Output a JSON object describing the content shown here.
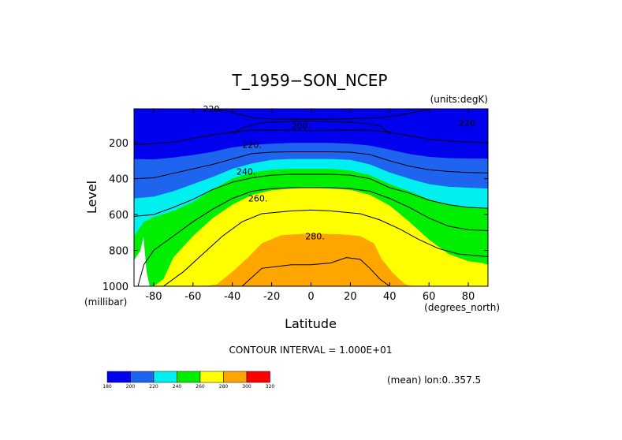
{
  "chart_data": {
    "type": "heatmap",
    "title": "T_1959−SON_NCEP",
    "units_label": "(units:degK)",
    "xlabel": "Latitude",
    "x_units_label": "(degrees_north)",
    "ylabel": "Level",
    "y_units_label": "(millibar)",
    "xlim": [
      -90,
      90
    ],
    "ylim": [
      1000,
      10
    ],
    "y_reversed": true,
    "x_ticks": [
      -80,
      -60,
      -40,
      -20,
      0,
      20,
      40,
      60,
      80
    ],
    "y_ticks": [
      200,
      400,
      600,
      800,
      1000
    ],
    "contour_interval_text": "CONTOUR INTERVAL = 1.000E+01",
    "mean_text": "(mean) lon:0..357.5",
    "contour_labels": [
      {
        "text": "220.",
        "lat": -50,
        "lev": 10,
        "value": 220
      },
      {
        "text": "200.",
        "lat": -5,
        "lev": 105,
        "value": 200
      },
      {
        "text": "220.",
        "lat": 80,
        "lev": 90,
        "value": 220
      },
      {
        "text": "220.",
        "lat": -30,
        "lev": 210,
        "value": 220
      },
      {
        "text": "240.",
        "lat": -33,
        "lev": 360,
        "value": 240
      },
      {
        "text": "260.",
        "lat": -27,
        "lev": 510,
        "value": 260
      },
      {
        "text": "280.",
        "lat": 2,
        "lev": 720,
        "value": 280
      }
    ],
    "colorbar": {
      "levels": [
        180,
        200,
        220,
        240,
        260,
        280,
        300,
        320
      ],
      "colors": [
        "#0000ee",
        "#1e64ee",
        "#00f0f0",
        "#00ee00",
        "#ffff00",
        "#ffa500",
        "#ff0000"
      ]
    },
    "bands": [
      {
        "lower": 200,
        "color": "#1e64ee",
        "boundary": [
          [
            -90,
            290
          ],
          [
            -80,
            292
          ],
          [
            -70,
            282
          ],
          [
            -60,
            268
          ],
          [
            -50,
            250
          ],
          [
            -40,
            225
          ],
          [
            -30,
            212
          ],
          [
            -20,
            205
          ],
          [
            -10,
            200
          ],
          [
            0,
            200
          ],
          [
            10,
            200
          ],
          [
            20,
            205
          ],
          [
            30,
            215
          ],
          [
            40,
            238
          ],
          [
            50,
            262
          ],
          [
            60,
            278
          ],
          [
            70,
            285
          ],
          [
            80,
            287
          ],
          [
            90,
            288
          ]
        ]
      },
      {
        "lower": 220,
        "color": "#00f0f0",
        "boundary": [
          [
            -90,
            510
          ],
          [
            -80,
            500
          ],
          [
            -70,
            470
          ],
          [
            -60,
            430
          ],
          [
            -50,
            390
          ],
          [
            -40,
            345
          ],
          [
            -30,
            315
          ],
          [
            -20,
            295
          ],
          [
            -10,
            290
          ],
          [
            0,
            290
          ],
          [
            10,
            290
          ],
          [
            20,
            295
          ],
          [
            30,
            320
          ],
          [
            40,
            365
          ],
          [
            50,
            400
          ],
          [
            60,
            430
          ],
          [
            70,
            445
          ],
          [
            80,
            450
          ],
          [
            90,
            455
          ]
        ]
      },
      {
        "lower": 240,
        "color": "#00ee00",
        "boundary": [
          [
            -90,
            720
          ],
          [
            -85,
            640
          ],
          [
            -80,
            615
          ],
          [
            -70,
            580
          ],
          [
            -60,
            530
          ],
          [
            -50,
            460
          ],
          [
            -40,
            400
          ],
          [
            -30,
            365
          ],
          [
            -20,
            350
          ],
          [
            -10,
            345
          ],
          [
            0,
            345
          ],
          [
            10,
            345
          ],
          [
            20,
            355
          ],
          [
            30,
            380
          ],
          [
            40,
            430
          ],
          [
            50,
            470
          ],
          [
            60,
            515
          ],
          [
            70,
            545
          ],
          [
            80,
            560
          ],
          [
            90,
            565
          ]
        ]
      },
      {
        "lower": 260,
        "color": "#ffff00",
        "boundary": [
          [
            -90,
            1000
          ],
          [
            -80,
            1000
          ],
          [
            -75,
            960
          ],
          [
            -70,
            840
          ],
          [
            -60,
            720
          ],
          [
            -50,
            620
          ],
          [
            -40,
            545
          ],
          [
            -30,
            490
          ],
          [
            -20,
            465
          ],
          [
            -10,
            455
          ],
          [
            0,
            450
          ],
          [
            10,
            455
          ],
          [
            20,
            462
          ],
          [
            30,
            490
          ],
          [
            40,
            550
          ],
          [
            50,
            640
          ],
          [
            60,
            740
          ],
          [
            70,
            820
          ],
          [
            80,
            860
          ],
          [
            87,
            870
          ],
          [
            90,
            880
          ]
        ]
      },
      {
        "lower": 280,
        "color": "#ffa500",
        "boundary": [
          [
            -90,
            1000
          ],
          [
            -55,
            1000
          ],
          [
            -48,
            990
          ],
          [
            -40,
            920
          ],
          [
            -32,
            840
          ],
          [
            -25,
            760
          ],
          [
            -15,
            715
          ],
          [
            0,
            705
          ],
          [
            15,
            710
          ],
          [
            25,
            720
          ],
          [
            32,
            760
          ],
          [
            36,
            850
          ],
          [
            42,
            930
          ],
          [
            48,
            990
          ],
          [
            52,
            1000
          ],
          [
            90,
            1000
          ]
        ]
      }
    ],
    "contour_lines": [
      [
        [
          -90,
          210
        ],
        [
          -80,
          205
        ],
        [
          -70,
          195
        ],
        [
          -60,
          175
        ],
        [
          -50,
          155
        ],
        [
          -40,
          140
        ],
        [
          -30,
          130
        ],
        [
          -20,
          128
        ],
        [
          -10,
          130
        ],
        [
          0,
          132
        ],
        [
          10,
          130
        ],
        [
          20,
          128
        ],
        [
          30,
          130
        ],
        [
          40,
          140
        ],
        [
          50,
          160
        ],
        [
          60,
          180
        ],
        [
          70,
          190
        ],
        [
          80,
          195
        ],
        [
          90,
          200
        ]
      ],
      [
        [
          -50,
          10
        ],
        [
          -40,
          30
        ],
        [
          -30,
          60
        ],
        [
          -20,
          65
        ],
        [
          0,
          68
        ],
        [
          20,
          65
        ],
        [
          35,
          60
        ],
        [
          45,
          45
        ],
        [
          55,
          25
        ],
        [
          60,
          10
        ]
      ],
      [
        [
          -40,
          150
        ],
        [
          -35,
          115
        ],
        [
          -25,
          88
        ],
        [
          -10,
          80
        ],
        [
          0,
          78
        ],
        [
          10,
          80
        ],
        [
          25,
          88
        ],
        [
          35,
          105
        ],
        [
          40,
          150
        ]
      ],
      [
        [
          -90,
          400
        ],
        [
          -80,
          395
        ],
        [
          -70,
          370
        ],
        [
          -60,
          345
        ],
        [
          -50,
          320
        ],
        [
          -40,
          290
        ],
        [
          -30,
          260
        ],
        [
          -20,
          252
        ],
        [
          -10,
          250
        ],
        [
          0,
          250
        ],
        [
          10,
          250
        ],
        [
          20,
          252
        ],
        [
          30,
          265
        ],
        [
          40,
          300
        ],
        [
          50,
          330
        ],
        [
          60,
          350
        ],
        [
          70,
          360
        ],
        [
          80,
          365
        ],
        [
          90,
          368
        ]
      ],
      [
        [
          -90,
          610
        ],
        [
          -80,
          600
        ],
        [
          -70,
          560
        ],
        [
          -60,
          515
        ],
        [
          -50,
          460
        ],
        [
          -40,
          420
        ],
        [
          -30,
          395
        ],
        [
          -20,
          380
        ],
        [
          -10,
          375
        ],
        [
          0,
          375
        ],
        [
          10,
          375
        ],
        [
          20,
          380
        ],
        [
          30,
          400
        ],
        [
          40,
          450
        ],
        [
          50,
          480
        ],
        [
          60,
          520
        ],
        [
          70,
          545
        ],
        [
          80,
          560
        ],
        [
          90,
          565
        ]
      ],
      [
        [
          -88,
          1000
        ],
        [
          -85,
          880
        ],
        [
          -80,
          800
        ],
        [
          -70,
          720
        ],
        [
          -60,
          640
        ],
        [
          -50,
          570
        ],
        [
          -40,
          510
        ],
        [
          -30,
          470
        ],
        [
          -20,
          455
        ],
        [
          -10,
          450
        ],
        [
          0,
          450
        ],
        [
          10,
          450
        ],
        [
          20,
          455
        ],
        [
          30,
          470
        ],
        [
          40,
          510
        ],
        [
          50,
          560
        ],
        [
          60,
          620
        ],
        [
          70,
          665
        ],
        [
          80,
          685
        ],
        [
          90,
          690
        ]
      ],
      [
        [
          -75,
          1000
        ],
        [
          -65,
          920
        ],
        [
          -55,
          820
        ],
        [
          -45,
          720
        ],
        [
          -35,
          640
        ],
        [
          -25,
          595
        ],
        [
          -10,
          580
        ],
        [
          0,
          575
        ],
        [
          10,
          580
        ],
        [
          25,
          595
        ],
        [
          35,
          630
        ],
        [
          45,
          680
        ],
        [
          55,
          740
        ],
        [
          65,
          790
        ],
        [
          75,
          820
        ],
        [
          85,
          830
        ],
        [
          90,
          835
        ]
      ],
      [
        [
          -35,
          1000
        ],
        [
          -25,
          900
        ],
        [
          -10,
          880
        ],
        [
          0,
          880
        ],
        [
          10,
          870
        ],
        [
          18,
          840
        ],
        [
          25,
          850
        ],
        [
          30,
          900
        ],
        [
          35,
          960
        ],
        [
          40,
          1000
        ]
      ]
    ]
  }
}
